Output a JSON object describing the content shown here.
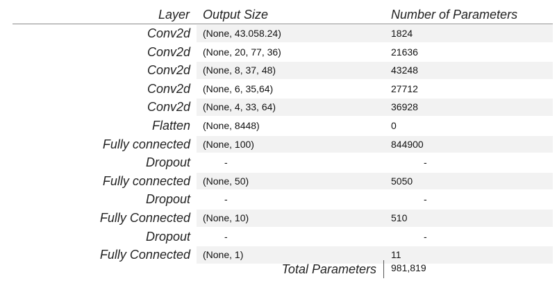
{
  "header": {
    "layer": "Layer",
    "output_size": "Output Size",
    "num_params": "Number of Parameters"
  },
  "rows": [
    {
      "layer": "Conv2d",
      "output": "(None, 43.058.24)",
      "params": "1824"
    },
    {
      "layer": "Conv2d",
      "output": "(None, 20, 77, 36)",
      "params": "21636"
    },
    {
      "layer": "Conv2d",
      "output": "(None, 8, 37, 48)",
      "params": "43248"
    },
    {
      "layer": "Conv2d",
      "output": "(None, 6, 35,64)",
      "params": "27712"
    },
    {
      "layer": "Conv2d",
      "output": "(None, 4, 33, 64)",
      "params": "36928"
    },
    {
      "layer": "Flatten",
      "output": "(None, 8448)",
      "params": "0"
    },
    {
      "layer": "Fully connected",
      "output": "(None, 100)",
      "params": "844900"
    },
    {
      "layer": "Dropout",
      "output": "-",
      "params": "-"
    },
    {
      "layer": "Fully connected",
      "output": "(None, 50)",
      "params": "5050"
    },
    {
      "layer": "Dropout",
      "output": "-",
      "params": "-"
    },
    {
      "layer": "Fully Connected",
      "output": "(None, 10)",
      "params": "510"
    },
    {
      "layer": "Dropout",
      "output": "-",
      "params": "-"
    },
    {
      "layer": "Fully Connected",
      "output": "(None, 1)",
      "params": "11"
    }
  ],
  "total": {
    "label": "Total Parameters",
    "value": "981,819"
  }
}
